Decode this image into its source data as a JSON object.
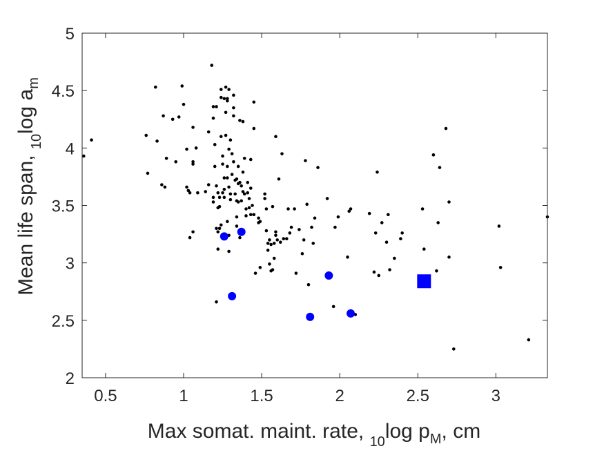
{
  "chart_data": {
    "type": "scatter",
    "xlabel": {
      "pre": "Max somat. maint. rate, ",
      "sub": "10",
      "mid": "log p",
      "sub2": "M",
      "post": ", cm"
    },
    "ylabel": {
      "pre": "Mean life span, ",
      "sub": "10",
      "mid": "log a",
      "sub2": "m"
    },
    "xlim": [
      0.35,
      3.33
    ],
    "ylim": [
      2,
      5
    ],
    "xticks": [
      0.5,
      1,
      1.5,
      2,
      2.5,
      3
    ],
    "xtick_labels": [
      "0.5",
      "1",
      "1.5",
      "2",
      "2.5",
      "3"
    ],
    "yticks": [
      2,
      2.5,
      3,
      3.5,
      4,
      4.5,
      5
    ],
    "ytick_labels": [
      "2",
      "2.5",
      "3",
      "3.5",
      "4",
      "4.5",
      "5"
    ],
    "grid": false,
    "colors": {
      "background": "#ffffff",
      "axes": "#262626",
      "small_points": "#000000",
      "highlight": "#0000ff"
    },
    "series": [
      {
        "marker": "dot",
        "color": "#000000",
        "points": [
          [
            0.36,
            3.93
          ],
          [
            0.41,
            4.07
          ],
          [
            0.76,
            4.11
          ],
          [
            0.77,
            3.78
          ],
          [
            0.82,
            4.53
          ],
          [
            0.83,
            4.06
          ],
          [
            0.86,
            3.68
          ],
          [
            0.87,
            4.28
          ],
          [
            0.89,
            3.91
          ],
          [
            0.88,
            3.66
          ],
          [
            0.93,
            4.25
          ],
          [
            0.95,
            3.88
          ],
          [
            0.97,
            4.27
          ],
          [
            0.99,
            4.54
          ],
          [
            1.0,
            4.38
          ],
          [
            1.02,
            3.99
          ],
          [
            1.02,
            3.66
          ],
          [
            1.03,
            3.63
          ],
          [
            1.04,
            3.61
          ],
          [
            1.04,
            3.22
          ],
          [
            1.06,
            3.88
          ],
          [
            1.06,
            3.86
          ],
          [
            1.06,
            4.18
          ],
          [
            1.06,
            3.27
          ],
          [
            1.08,
            4.0
          ],
          [
            1.09,
            3.61
          ],
          [
            1.14,
            3.62
          ],
          [
            1.16,
            3.68
          ],
          [
            1.16,
            4.14
          ],
          [
            1.18,
            4.72
          ],
          [
            1.19,
            4.36
          ],
          [
            1.19,
            4.26
          ],
          [
            1.2,
            4.03
          ],
          [
            1.19,
            3.57
          ],
          [
            1.19,
            3.53
          ],
          [
            1.2,
            3.84
          ],
          [
            1.21,
            4.36
          ],
          [
            1.21,
            3.67
          ],
          [
            1.22,
            3.61
          ],
          [
            1.22,
            3.48
          ],
          [
            1.23,
            3.57
          ],
          [
            1.23,
            3.49
          ],
          [
            1.24,
            4.44
          ],
          [
            1.24,
            4.51
          ],
          [
            1.24,
            4.1
          ],
          [
            1.25,
            3.93
          ],
          [
            1.24,
            3.33
          ],
          [
            1.23,
            3.3
          ],
          [
            1.21,
            3.3
          ],
          [
            1.22,
            3.27
          ],
          [
            1.22,
            3.12
          ],
          [
            1.21,
            2.66
          ],
          [
            1.25,
            3.86
          ],
          [
            1.26,
            3.74
          ],
          [
            1.26,
            3.64
          ],
          [
            1.25,
            3.61
          ],
          [
            1.26,
            3.57
          ],
          [
            1.26,
            4.43
          ],
          [
            1.27,
            4.53
          ],
          [
            1.27,
            4.31
          ],
          [
            1.27,
            4.11
          ],
          [
            1.28,
            4.43
          ],
          [
            1.29,
            4.51
          ],
          [
            1.28,
            4.41
          ],
          [
            1.29,
            3.99
          ],
          [
            1.28,
            3.84
          ],
          [
            1.28,
            3.74
          ],
          [
            1.29,
            3.66
          ],
          [
            1.3,
            3.6
          ],
          [
            1.3,
            3.55
          ],
          [
            1.28,
            3.36
          ],
          [
            1.29,
            3.24
          ],
          [
            1.29,
            3.1
          ],
          [
            1.3,
            4.07
          ],
          [
            1.31,
            3.95
          ],
          [
            1.31,
            3.77
          ],
          [
            1.32,
            4.46
          ],
          [
            1.32,
            4.35
          ],
          [
            1.32,
            4.28
          ],
          [
            1.32,
            3.88
          ],
          [
            1.33,
            3.72
          ],
          [
            1.33,
            3.6
          ],
          [
            1.34,
            3.73
          ],
          [
            1.34,
            3.54
          ],
          [
            1.34,
            3.4
          ],
          [
            1.34,
            3.32
          ],
          [
            1.35,
            3.84
          ],
          [
            1.35,
            3.69
          ],
          [
            1.35,
            3.53
          ],
          [
            1.36,
            4.24
          ],
          [
            1.36,
            3.7
          ],
          [
            1.36,
            3.27
          ],
          [
            1.36,
            3.22
          ],
          [
            1.37,
            3.67
          ],
          [
            1.37,
            3.54
          ],
          [
            1.38,
            4.23
          ],
          [
            1.38,
            3.79
          ],
          [
            1.38,
            3.62
          ],
          [
            1.39,
            3.91
          ],
          [
            1.39,
            3.6
          ],
          [
            1.4,
            3.47
          ],
          [
            1.4,
            3.41
          ],
          [
            1.41,
            3.7
          ],
          [
            1.41,
            3.61
          ],
          [
            1.42,
            3.56
          ],
          [
            1.42,
            3.48
          ],
          [
            1.43,
            3.9
          ],
          [
            1.43,
            3.65
          ],
          [
            1.43,
            3.42
          ],
          [
            1.44,
            3.5
          ],
          [
            1.45,
            4.4
          ],
          [
            1.45,
            4.17
          ],
          [
            1.45,
            3.42
          ],
          [
            1.46,
            2.91
          ],
          [
            1.48,
            3.39
          ],
          [
            1.48,
            3.35
          ],
          [
            1.49,
            3.36
          ],
          [
            1.49,
            2.96
          ],
          [
            1.52,
            3.6
          ],
          [
            1.52,
            3.56
          ],
          [
            1.53,
            3.47
          ],
          [
            1.53,
            3.28
          ],
          [
            1.54,
            3.17
          ],
          [
            1.54,
            3.11
          ],
          [
            1.55,
            3.2
          ],
          [
            1.55,
            2.99
          ],
          [
            1.56,
            3.16
          ],
          [
            1.56,
            2.93
          ],
          [
            1.57,
            3.49
          ],
          [
            1.57,
            2.94
          ],
          [
            1.58,
            3.17
          ],
          [
            1.58,
            3.04
          ],
          [
            1.59,
            4.1
          ],
          [
            1.59,
            3.27
          ],
          [
            1.59,
            3.24
          ],
          [
            1.6,
            3.2
          ],
          [
            1.61,
            3.73
          ],
          [
            1.62,
            3.18
          ],
          [
            1.63,
            3.95
          ],
          [
            1.64,
            3.21
          ],
          [
            1.66,
            3.21
          ],
          [
            1.67,
            3.47
          ],
          [
            1.68,
            3.26
          ],
          [
            1.69,
            3.31
          ],
          [
            1.71,
            3.47
          ],
          [
            1.72,
            2.91
          ],
          [
            1.74,
            3.29
          ],
          [
            1.76,
            3.08
          ],
          [
            1.77,
            3.2
          ],
          [
            1.78,
            3.89
          ],
          [
            1.79,
            3.51
          ],
          [
            1.8,
            2.81
          ],
          [
            1.82,
            3.31
          ],
          [
            1.83,
            3.17
          ],
          [
            1.84,
            3.39
          ],
          [
            1.86,
            3.83
          ],
          [
            1.92,
            3.56
          ],
          [
            1.96,
            2.62
          ],
          [
            1.97,
            3.31
          ],
          [
            1.99,
            3.4
          ],
          [
            2.05,
            3.05
          ],
          [
            2.06,
            3.45
          ],
          [
            2.07,
            3.47
          ],
          [
            2.1,
            2.55
          ],
          [
            2.19,
            3.43
          ],
          [
            2.22,
            2.92
          ],
          [
            2.23,
            3.26
          ],
          [
            2.24,
            3.79
          ],
          [
            2.25,
            2.89
          ],
          [
            2.27,
            3.35
          ],
          [
            2.3,
            3.18
          ],
          [
            2.31,
            3.42
          ],
          [
            2.32,
            2.94
          ],
          [
            2.35,
            3.04
          ],
          [
            2.39,
            3.21
          ],
          [
            2.4,
            3.26
          ],
          [
            2.53,
            3.47
          ],
          [
            2.54,
            3.12
          ],
          [
            2.6,
            3.94
          ],
          [
            2.62,
            2.93
          ],
          [
            2.63,
            3.35
          ],
          [
            2.64,
            3.83
          ],
          [
            2.68,
            4.17
          ],
          [
            2.7,
            3.53
          ],
          [
            2.7,
            3.05
          ],
          [
            2.73,
            2.25
          ],
          [
            3.02,
            3.32
          ],
          [
            3.03,
            2.96
          ],
          [
            3.21,
            2.33
          ],
          [
            3.33,
            3.4
          ]
        ]
      },
      {
        "marker": "circle",
        "color": "#0000ff",
        "points": [
          [
            1.26,
            3.23
          ],
          [
            1.37,
            3.27
          ],
          [
            1.31,
            2.71
          ],
          [
            1.93,
            2.89
          ],
          [
            1.81,
            2.53
          ],
          [
            2.07,
            2.56
          ]
        ]
      },
      {
        "marker": "square",
        "color": "#0000ff",
        "points": [
          [
            2.54,
            2.84
          ]
        ]
      }
    ]
  }
}
